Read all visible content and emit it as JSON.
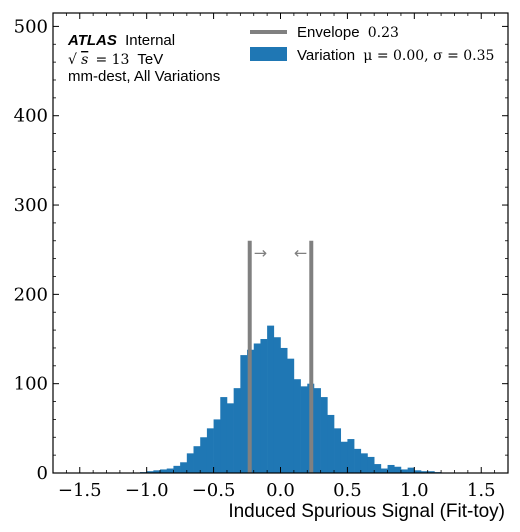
{
  "chart_data": {
    "type": "histogram",
    "xlabel": "Induced Spurious Signal (Fit-toy)",
    "ylabel": "",
    "xlim": [
      -1.7,
      1.7
    ],
    "ylim": [
      0,
      515
    ],
    "x_ticks": [
      -1.5,
      -1.0,
      -0.5,
      0.0,
      0.5,
      1.0,
      1.5
    ],
    "x_tick_labels": [
      "−1.5",
      "−1.0",
      "−0.5",
      "0.0",
      "0.5",
      "1.0",
      "1.5"
    ],
    "y_ticks": [
      0,
      100,
      200,
      300,
      400,
      500
    ],
    "y_tick_labels": [
      "0",
      "100",
      "200",
      "300",
      "400",
      "500"
    ],
    "bin_width": 0.05,
    "bins_start": [
      -1.05,
      -1.0,
      -0.95,
      -0.9,
      -0.85,
      -0.8,
      -0.75,
      -0.7,
      -0.65,
      -0.6,
      -0.55,
      -0.5,
      -0.45,
      -0.4,
      -0.35,
      -0.3,
      -0.25,
      -0.2,
      -0.15,
      -0.1,
      -0.05,
      0.0,
      0.05,
      0.1,
      0.15,
      0.2,
      0.25,
      0.3,
      0.35,
      0.4,
      0.45,
      0.5,
      0.55,
      0.6,
      0.65,
      0.7,
      0.75,
      0.8,
      0.85,
      0.9,
      0.95,
      1.0,
      1.05,
      1.1,
      1.15
    ],
    "counts": [
      1,
      2,
      3,
      4,
      5,
      8,
      12,
      22,
      30,
      40,
      50,
      60,
      85,
      78,
      95,
      132,
      138,
      145,
      150,
      165,
      152,
      140,
      128,
      105,
      97,
      100,
      95,
      85,
      65,
      50,
      35,
      38,
      27,
      22,
      18,
      10,
      5,
      9,
      7,
      4,
      6,
      3,
      2,
      2,
      1
    ],
    "envelope": {
      "lower": -0.23,
      "upper": 0.23,
      "label": "Envelope",
      "value": "0.23",
      "color": "#808080",
      "line_top": 260
    },
    "arrows": {
      "left_glyph": "→",
      "right_glyph": "←",
      "y": 247
    },
    "histogram_color": "#1f77b4",
    "legend": {
      "placement": "top-right",
      "entries": [
        {
          "label": "Envelope",
          "math": "0.23"
        },
        {
          "label": "Variation",
          "math": "μ = 0.00, σ = 0.35"
        }
      ]
    },
    "annotation": {
      "atlas": "ATLAS",
      "status": "Internal",
      "sqrt": "√",
      "energy_sym": "s",
      "energy_eq": "= 13",
      "energy_unit": "TeV",
      "subtitle": "mm-dest, All Variations"
    }
  }
}
